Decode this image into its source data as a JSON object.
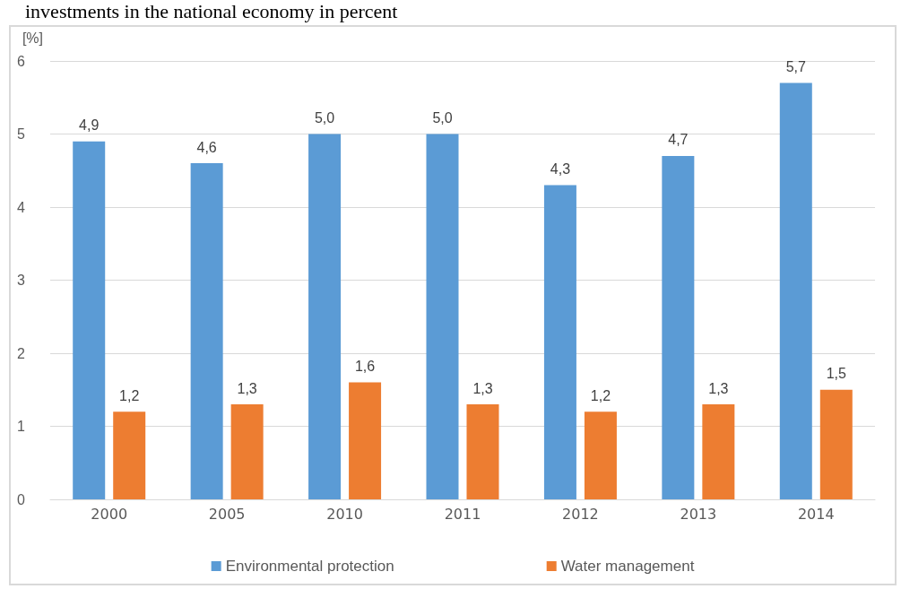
{
  "chart_data": {
    "type": "bar",
    "title": "investments in the national economy in percent",
    "ylabel": "[%]",
    "categories": [
      "2000",
      "2005",
      "2010",
      "2011",
      "2012",
      "2013",
      "2014"
    ],
    "series": [
      {
        "name": "Environmental protection",
        "color": "#5b9bd5",
        "values": [
          4.9,
          4.6,
          5.0,
          5.0,
          4.3,
          4.7,
          5.7
        ],
        "value_labels": [
          "4,9",
          "4,6",
          "5,0",
          "5,0",
          "4,3",
          "4,7",
          "5,7"
        ]
      },
      {
        "name": "Water management",
        "color": "#ed7d31",
        "values": [
          1.2,
          1.3,
          1.6,
          1.3,
          1.2,
          1.3,
          1.5
        ],
        "value_labels": [
          "1,2",
          "1,3",
          "1,6",
          "1,3",
          "1,2",
          "1,3",
          "1,5"
        ]
      }
    ],
    "ylim": [
      0,
      6
    ],
    "yticks": [
      0,
      1,
      2,
      3,
      4,
      5,
      6
    ],
    "grid": "y",
    "legend": "bottom"
  }
}
